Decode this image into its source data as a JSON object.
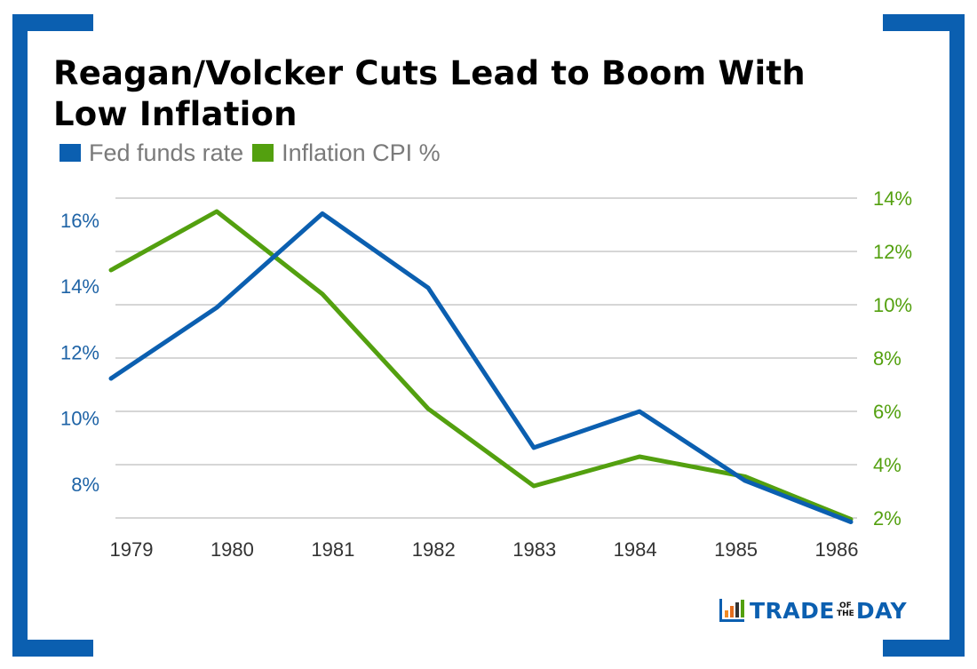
{
  "title_lines": [
    "Reagan/Volcker Cuts Lead to Boom With",
    "Low Inflation"
  ],
  "legend": [
    {
      "label": "Fed funds rate",
      "color": "#0B5FB0"
    },
    {
      "label": "Inflation CPI %",
      "color": "#53A00F"
    }
  ],
  "logo": {
    "word1": "TRADE",
    "small_top": "OF",
    "small_bottom": "THE",
    "word2": "DAY",
    "icon": "bar-chart-icon"
  },
  "chart_data": {
    "type": "line",
    "title": "Reagan/Volcker Cuts Lead to Boom With Low Inflation",
    "categories": [
      "1979",
      "1980",
      "1981",
      "1982",
      "1983",
      "1984",
      "1985",
      "1986"
    ],
    "series": [
      {
        "name": "Fed funds rate",
        "axis": "left",
        "color": "#0B5FB0",
        "values": [
          11.2,
          13.35,
          16.2,
          13.95,
          9.1,
          10.2,
          8.1,
          6.85
        ]
      },
      {
        "name": "Inflation CPI %",
        "axis": "right",
        "color": "#53A00F",
        "values": [
          11.3,
          13.5,
          10.4,
          6.1,
          3.2,
          4.3,
          3.55,
          1.95
        ]
      }
    ],
    "left_axis": {
      "ticks": [
        "16%",
        "14%",
        "12%",
        "10%",
        "8%"
      ],
      "tick_values": [
        16,
        14,
        12,
        10,
        8
      ],
      "range": [
        6.97,
        16.67
      ],
      "color": "#1E63A6"
    },
    "right_axis": {
      "ticks": [
        "14%",
        "12%",
        "10%",
        "8%",
        "6%",
        "4%",
        "2%"
      ],
      "tick_values": [
        14,
        12,
        10,
        8,
        6,
        4,
        2
      ],
      "range": [
        2,
        14
      ],
      "color": "#53A00F"
    },
    "xlabel": "",
    "ylabel": "",
    "grid": true,
    "legend_position": "top-left"
  }
}
